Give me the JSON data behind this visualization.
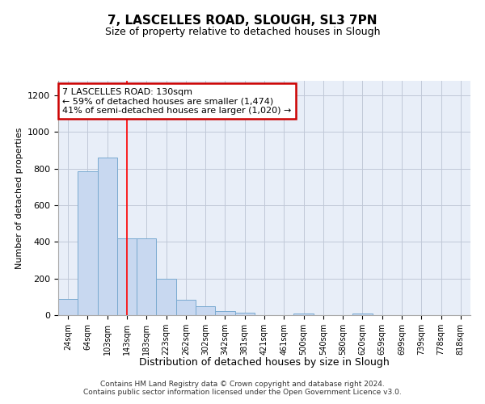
{
  "title1": "7, LASCELLES ROAD, SLOUGH, SL3 7PN",
  "title2": "Size of property relative to detached houses in Slough",
  "xlabel": "Distribution of detached houses by size in Slough",
  "ylabel": "Number of detached properties",
  "bar_labels": [
    "24sqm",
    "64sqm",
    "103sqm",
    "143sqm",
    "183sqm",
    "223sqm",
    "262sqm",
    "302sqm",
    "342sqm",
    "381sqm",
    "421sqm",
    "461sqm",
    "500sqm",
    "540sqm",
    "580sqm",
    "620sqm",
    "659sqm",
    "699sqm",
    "739sqm",
    "778sqm",
    "818sqm"
  ],
  "bar_values": [
    90,
    785,
    860,
    420,
    420,
    200,
    85,
    50,
    22,
    15,
    0,
    0,
    10,
    0,
    0,
    10,
    0,
    0,
    0,
    0,
    0
  ],
  "bar_color": "#c8d8f0",
  "bar_edge_color": "#7aaad0",
  "red_line_x": 3.0,
  "annotation_text": "7 LASCELLES ROAD: 130sqm\n← 59% of detached houses are smaller (1,474)\n41% of semi-detached houses are larger (1,020) →",
  "annotation_box_color": "#ffffff",
  "annotation_border_color": "#cc0000",
  "ylim": [
    0,
    1280
  ],
  "yticks": [
    0,
    200,
    400,
    600,
    800,
    1000,
    1200
  ],
  "footnote": "Contains HM Land Registry data © Crown copyright and database right 2024.\nContains public sector information licensed under the Open Government Licence v3.0.",
  "bg_color": "#e8eef8",
  "grid_color": "#c0c8d8"
}
